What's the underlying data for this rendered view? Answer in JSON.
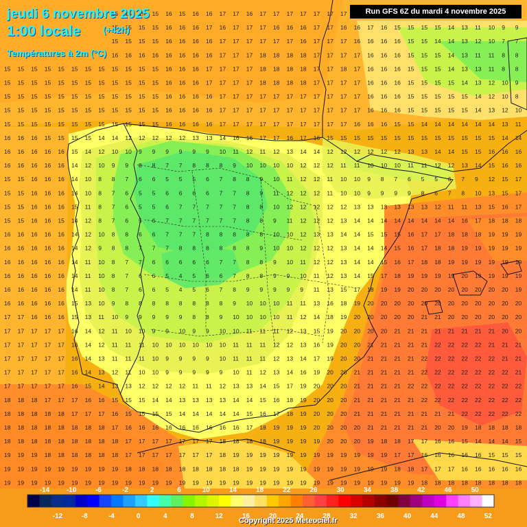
{
  "header": {
    "date_line": "jeudi 6 novembre 2025",
    "time_line": "1:00 locale",
    "lead_time": "(+42h)",
    "variable": "Températures à 2m (°C)",
    "run_info": "Run GFS 6Z du mardi 4 novembre 2025",
    "copyright": "Copyright 2025 Meteociel.fr"
  },
  "legend": {
    "top_labels": [
      "-14",
      "-10",
      "-6",
      "-2",
      "2",
      "6",
      "10",
      "14",
      "18",
      "22",
      "26",
      "30",
      "34",
      "38",
      "42",
      "46",
      "50"
    ],
    "bottom_labels": [
      "-12",
      "-8",
      "-4",
      "0",
      "4",
      "8",
      "12",
      "16",
      "20",
      "24",
      "28",
      "32",
      "36",
      "40",
      "44",
      "48",
      "52"
    ],
    "colors": [
      "#00004b",
      "#08275d",
      "#072e8b",
      "#002ba0",
      "#0000c8",
      "#0000ff",
      "#1446ff",
      "#0078ff",
      "#1ea0ff",
      "#33cbff",
      "#33ffff",
      "#44ffaa",
      "#5ef05e",
      "#87f500",
      "#b4f500",
      "#dcf500",
      "#ffff00",
      "#ffff70",
      "#fff0a0",
      "#ffe060",
      "#ffc800",
      "#ffa500",
      "#ff8000",
      "#ff6030",
      "#ff4040",
      "#ff2020",
      "#ff0000",
      "#d80000",
      "#b40000",
      "#8c0000",
      "#700000",
      "#800040",
      "#a00080",
      "#c000c0",
      "#e000e0",
      "#ff40ff",
      "#ff80ff",
      "#ffb0ff",
      "#ffffff"
    ]
  },
  "map": {
    "field_colors": {
      "c8": "#86ef55",
      "c10": "#c9f24b",
      "c12": "#e8f255",
      "c14": "#ffff66",
      "c16": "#ffd94a",
      "c18": "#ffb62e",
      "c20": "#ff8d2a",
      "c22": "#ff5a3c"
    },
    "grid_rows": [
      "15 15 15 15 14 15 15 15 15 15 15 15 16 15 16 16 17 17 16 17 17 17 17 17 17 17 16 17 16 16 15 15 16 15 15 15 15 16 16",
      "15 15 15 15 15 15 15 15 15 15 15 15 16 16 16 17 16 17 17 17 16 16 16 17 17 16 16 17 16 15 15 15 15 14 13 11 10 9 9",
      "15 15 15 14 15 15 15 15 15 15 15 15 16 16 16 16 17 17 17 17 17 17 16 17 17 17 16 16 16 16 15 15 14 14 13 12 10 7 7",
      "15 15 15 15 15 15 15 15 16 16 16 16 16 16 16 16 17 17 17 18 18 18 18 17 17 17 17 16 16 16 15 15 15 14 13 11 11 8 8",
      "15 15 15 15 15 15 15 15 15 15 15 15 16 16 16 17 17 17 17 18 18 18 18 17 17 18 17 16 16 16 15 15 15 14 13 13 11 8 8",
      "15 15 15 15 15 15 15 15 15 15 15 15 16 16 16 17 17 17 17 18 18 18 18 17 17 17 17 16 16 16 15 15 15 15 14 13 12 10 9",
      "15 15 15 15 15 15 15 15 15 15 15 15 16 16 16 16 17 17 17 17 17 17 17 17 17 17 17 16 16 16 15 15 15 15 15 14 12 10 8",
      "15 15 15 15 15 15 15 15 15 15 15 15 16 16 16 16 17 17 17 17 17 17 17 17 17 17 17 16 16 16 15 15 15 15 15 14 13 12 10",
      "15 15 15 15 15 15 15 15 15 15 15 15 16 16 16 16 17 17 17 17 17 17 17 17 17 17 16 16 16 15 15 14 14 14 14 14 14 13 11",
      "16 16 16 15 15 15 15 14 14 12 12 12 12 12 13 13 14 16 16 17 17 16 17 16 15 15 15 15 15 15 15 15 15 15 15 15 15 14 14",
      "16 16 16 16 16 15 14 12 10 10 9 9 9 9 9 9 10 11 12 11 12 13 14 14 12 12 12 12 12 12 13 13 14 14 15 15 16 16 16",
      "16 16 16 16 16 14 12 10 9 9 8 8 7 7 8 8 8 9 10 10 10 10 12 12 12 11 11 10 10 10 11 11 12 12 13 14 15 16 16",
      "15 15 16 16 16 14 10 8 8 7 6 6 5 5 5 6 7 8 8 9 10 11 12 12 11 10 10 9 8 7 6 5 5 6 7 9 12 15 17",
      "15 15 16 16 16 14 10 8 7 6 5 5 6 6 6 6 7 7 8 9 11 12 12 12 11 10 10 9 9 9 9 8 6 7 8 10 13 15 17",
      "15 15 16 16 16 15 11 8 7 6 5 5 6 7 7 7 7 7 8 8 10 12 12 12 12 12 13 13 13 13 13 13 12 11 11 13 15 16 17",
      "15 15 16 16 15 14 12 8 7 6 5 6 7 7 7 7 7 7 8 8 9 11 12 12 12 13 14 14 14 14 14 14 14 14 16 17 18 18 18",
      "16 16 16 16 16 14 12 10 8 8 6 6 7 7 7 8 8 8 8 8 10 10 12 13 13 14 14 15 15 15 16 17 17 18 18 18 19 19 19",
      "16 16 16 16 16 14 12 9 8 8 7 7 7 8 8 8 8 8 8 9 10 10 12 12 12 13 14 14 14 15 16 17 18 18 19 19 19 19 19",
      "16 16 16 16 16 14 11 10 8 7 7 6 6 6 6 6 7 7 8 8 9 10 11 12 12 13 14 14 15 16 17 18 18 19 19 19 19 19 19",
      "16 16 16 16 16 14 11 10 8 7 6 6 5 4 5 6 6 7 8 8 9 9 10 11 12 13 14 15 17 18 19 19 19 19 20 19 19 19 19",
      "16 16 16 16 16 14 11 10 8 7 6 6 5 4 5 6 7 8 9 9 9 9 9 11 13 15 17 18 19 19 20 20 20 20 20 20 20 20 19",
      "16 16 16 16 16 15 13 10 9 8 8 8 8 8 8 8 8 9 10 10 10 11 11 13 16 18 19 20 20 20 20 20 20 20 20 20 20 20 20",
      "17 17 16 16 16 15 13 11 10 9 9 9 9 9 8 8 9 10 10 10 10 11 12 14 18 19 20 20 20 20 20 21 21 20 20 20 20 20 20",
      "17 17 17 17 17 16 14 12 11 10 10 9 9 10 9 9 10 10 11 11 11 12 13 15 19 20 20 20 20 21 21 21 21 21 21 21 21 20 20",
      "17 17 17 17 17 16 14 12 11 11 11 10 10 10 10 10 10 11 11 11 12 12 13 16 19 20 20 21 21 21 21 21 22 22 22 22 21 21 21",
      "17 17 17 17 17 16 14 13 11 11 11 10 9 9 9 9 10 11 11 11 12 13 14 17 19 20 20 21 21 21 21 22 22 22 22 22 22 21 21",
      "17 17 17 17 17 16 14 13 12 11 10 10 9 9 9 9 9 10 11 12 13 14 16 19 20 20 21 21 21 21 21 22 22 22 22 22 22 22 21",
      "17 17 17 17 17 16 15 14 13 13 12 12 12 12 11 11 12 13 13 14 15 17 19 20 20 20 21 21 21 21 22 22 22 22 22 22 22 22 22",
      "18 18 18 17 17 17 16 16 15 15 15 14 14 13 13 13 13 14 14 15 16 18 19 20 20 20 21 21 21 21 21 22 22 22 22 22 22 22 22",
      "18 18 18 18 18 17 17 17 16 15 15 15 15 14 14 14 14 14 15 16 17 18 19 20 20 20 21 21 21 21 21 21 21 21 22 22 22 22 22",
      "18 18 18 18 18 18 18 18 17 16 16 16 16 16 16 16 16 16 17 18 19 19 19 20 20 20 20 21 21 21 21 21 20 20 19 18 18 18 18",
      "18 18 18 18 18 18 18 18 18 17 17 17 17 17 17 17 18 18 18 18 19 19 19 19 20 20 20 19 18 18 17 17 16 16 15 14 14 14 15",
      "19 19 19 18 18 18 18 18 18 17 17 17 17 17 17 17 18 19 19 19 19 19 19 19 19 19 19 19 19 17 17 16 16 16 16 16 15 15 15",
      "19 19 19 19 19 19 19 19 19 18 18 18 18 18 18 18 18 18 19 19 19 19 19 19 19 19 19 19 19 18 18 17 17 17 16 16 16 16 16",
      "19 19 19 19 19 19 19 19 19 19 19 19 19 19 19 19 19 19 19 19 19 19 19 19 19 19 19 19 19 19 19 18 18 18 18 18 18 18 18"
    ]
  }
}
